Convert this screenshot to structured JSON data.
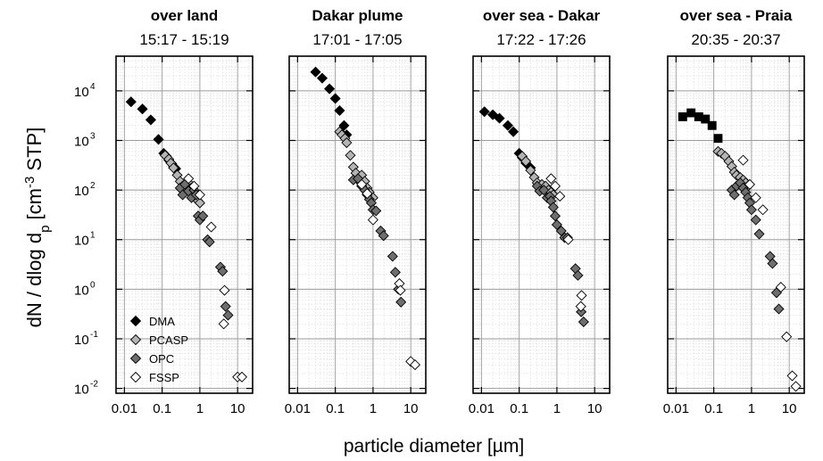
{
  "figure": {
    "ylabel": {
      "pre": "dN / dlog d",
      "sub": "p",
      "mid": "  [cm",
      "sup": "-3",
      "post": " STP]"
    },
    "xlabel": "particle diameter  [µm]",
    "legend": [
      {
        "name": "DMA",
        "marker": "diamond",
        "fill": "#000000",
        "stroke": "#000000"
      },
      {
        "name": "PCASP",
        "marker": "diamond",
        "fill": "#b4b4b4",
        "stroke": "#000000"
      },
      {
        "name": "OPC",
        "marker": "diamond",
        "fill": "#6e6e6e",
        "stroke": "#000000"
      },
      {
        "name": "FSSP",
        "marker": "diamond",
        "fill": "#ffffff",
        "stroke": "#000000"
      }
    ],
    "x_tick_labels": [
      "0.01",
      "0.1",
      "1",
      "10"
    ],
    "y_tick_labels": [
      {
        "base": "10",
        "exp": "4"
      },
      {
        "base": "10",
        "exp": "3"
      },
      {
        "base": "10",
        "exp": "2"
      },
      {
        "base": "10",
        "exp": "1"
      },
      {
        "base": "10",
        "exp": "0"
      },
      {
        "base": "10",
        "exp": "-1"
      },
      {
        "base": "10",
        "exp": "-2"
      }
    ]
  },
  "chart_data": [
    {
      "type": "scatter",
      "title": "over land",
      "subtitle": "15:17 - 15:19",
      "x_scale": "log",
      "y_scale": "log",
      "xlim": [
        0.006,
        25
      ],
      "ylim": [
        0.008,
        50000
      ],
      "grid": true,
      "legend_position": "bottom-left",
      "series": [
        {
          "name": "DMA",
          "points": [
            [
              0.015,
              6000
            ],
            [
              0.03,
              4300
            ],
            [
              0.05,
              2600
            ],
            [
              0.08,
              1050
            ],
            [
              0.11,
              550
            ],
            [
              0.13,
              480
            ],
            [
              0.15,
              400
            ],
            [
              0.18,
              340
            ],
            [
              0.2,
              300
            ],
            [
              0.23,
              270
            ]
          ]
        },
        {
          "name": "PCASP",
          "points": [
            [
              0.12,
              500
            ],
            [
              0.15,
              420
            ],
            [
              0.17,
              350
            ],
            [
              0.2,
              280
            ],
            [
              0.25,
              200
            ],
            [
              0.3,
              150
            ],
            [
              0.35,
              120
            ],
            [
              0.4,
              100
            ],
            [
              0.5,
              140
            ],
            [
              0.6,
              110
            ],
            [
              0.7,
              90
            ],
            [
              0.8,
              70
            ],
            [
              0.9,
              60
            ],
            [
              1.0,
              55
            ]
          ]
        },
        {
          "name": "OPC",
          "points": [
            [
              0.3,
              110
            ],
            [
              0.35,
              80
            ],
            [
              0.4,
              130
            ],
            [
              0.5,
              95
            ],
            [
              0.6,
              70
            ],
            [
              0.7,
              100
            ],
            [
              0.8,
              80
            ],
            [
              0.9,
              30
            ],
            [
              1.0,
              25
            ],
            [
              1.2,
              30
            ],
            [
              1.6,
              10
            ],
            [
              1.8,
              9
            ],
            [
              3.5,
              2.8
            ],
            [
              4.0,
              2.3
            ],
            [
              4.8,
              0.45
            ],
            [
              5.6,
              0.3
            ]
          ]
        },
        {
          "name": "FSSP",
          "points": [
            [
              0.5,
              170
            ],
            [
              0.7,
              120
            ],
            [
              1.0,
              80
            ],
            [
              2.0,
              18
            ],
            [
              4.5,
              0.95
            ],
            [
              4.3,
              0.2
            ],
            [
              10,
              0.017
            ],
            [
              13,
              0.017
            ]
          ]
        }
      ]
    },
    {
      "type": "scatter",
      "title": "Dakar plume",
      "subtitle": "17:01 - 17:05",
      "x_scale": "log",
      "y_scale": "log",
      "xlim": [
        0.006,
        25
      ],
      "ylim": [
        0.008,
        50000
      ],
      "grid": true,
      "series": [
        {
          "name": "DMA",
          "points": [
            [
              0.03,
              24000
            ],
            [
              0.045,
              18000
            ],
            [
              0.07,
              11000
            ],
            [
              0.1,
              7000
            ],
            [
              0.13,
              4000
            ],
            [
              0.17,
              2000
            ],
            [
              0.2,
              1300
            ]
          ]
        },
        {
          "name": "PCASP",
          "points": [
            [
              0.13,
              1500
            ],
            [
              0.15,
              1300
            ],
            [
              0.18,
              1100
            ],
            [
              0.2,
              900
            ],
            [
              0.25,
              500
            ],
            [
              0.3,
              290
            ],
            [
              0.35,
              220
            ],
            [
              0.4,
              160
            ],
            [
              0.5,
              200
            ],
            [
              0.6,
              150
            ],
            [
              0.7,
              110
            ],
            [
              0.8,
              90
            ],
            [
              1.0,
              70
            ]
          ]
        },
        {
          "name": "OPC",
          "points": [
            [
              0.3,
              160
            ],
            [
              0.4,
              170
            ],
            [
              0.5,
              120
            ],
            [
              0.6,
              100
            ],
            [
              0.7,
              80
            ],
            [
              0.8,
              65
            ],
            [
              0.9,
              55
            ],
            [
              1.0,
              40
            ],
            [
              1.2,
              38
            ],
            [
              1.6,
              15
            ],
            [
              1.9,
              12
            ],
            [
              3.3,
              4.6
            ],
            [
              3.9,
              2.2
            ],
            [
              4.7,
              1.0
            ],
            [
              5.5,
              0.55
            ]
          ]
        },
        {
          "name": "FSSP",
          "points": [
            [
              0.5,
              130
            ],
            [
              0.7,
              85
            ],
            [
              1.0,
              25
            ],
            [
              5.0,
              1.3
            ],
            [
              5.3,
              0.95
            ],
            [
              10,
              0.035
            ],
            [
              13,
              0.03
            ]
          ]
        }
      ]
    },
    {
      "type": "scatter",
      "title": "over sea - Dakar",
      "subtitle": "17:22 - 17:26",
      "x_scale": "log",
      "y_scale": "log",
      "xlim": [
        0.006,
        25
      ],
      "ylim": [
        0.008,
        50000
      ],
      "grid": true,
      "series": [
        {
          "name": "DMA",
          "points": [
            [
              0.012,
              3800
            ],
            [
              0.02,
              3300
            ],
            [
              0.03,
              2800
            ],
            [
              0.05,
              2000
            ],
            [
              0.07,
              1500
            ],
            [
              0.1,
              550
            ],
            [
              0.12,
              450
            ],
            [
              0.15,
              350
            ],
            [
              0.2,
              280
            ]
          ]
        },
        {
          "name": "PCASP",
          "points": [
            [
              0.12,
              480
            ],
            [
              0.15,
              380
            ],
            [
              0.2,
              250
            ],
            [
              0.25,
              180
            ],
            [
              0.3,
              140
            ],
            [
              0.35,
              110
            ],
            [
              0.4,
              130
            ],
            [
              0.5,
              120
            ],
            [
              0.6,
              100
            ],
            [
              0.7,
              90
            ],
            [
              0.8,
              80
            ]
          ]
        },
        {
          "name": "OPC",
          "points": [
            [
              0.3,
              120
            ],
            [
              0.35,
              95
            ],
            [
              0.45,
              100
            ],
            [
              0.55,
              70
            ],
            [
              0.65,
              75
            ],
            [
              0.7,
              60
            ],
            [
              0.8,
              45
            ],
            [
              0.9,
              30
            ],
            [
              1.0,
              20
            ],
            [
              1.3,
              15
            ],
            [
              1.6,
              11
            ],
            [
              1.9,
              11
            ],
            [
              3.1,
              2.6
            ],
            [
              3.6,
              1.9
            ],
            [
              4.4,
              0.35
            ],
            [
              5.1,
              0.22
            ]
          ]
        },
        {
          "name": "FSSP",
          "points": [
            [
              0.7,
              170
            ],
            [
              0.9,
              120
            ],
            [
              1.2,
              75
            ],
            [
              2.0,
              10
            ],
            [
              4.5,
              0.75
            ],
            [
              4.3,
              0.45
            ]
          ]
        }
      ]
    },
    {
      "type": "scatter",
      "title": "over sea - Praia",
      "subtitle": "20:35 - 20:37",
      "x_scale": "log",
      "y_scale": "log",
      "xlim": [
        0.006,
        25
      ],
      "ylim": [
        0.008,
        50000
      ],
      "grid": true,
      "series": [
        {
          "name": "DMA",
          "marker": "square",
          "points": [
            [
              0.015,
              3000
            ],
            [
              0.025,
              3600
            ],
            [
              0.04,
              3000
            ],
            [
              0.06,
              2700
            ],
            [
              0.09,
              2000
            ],
            [
              0.13,
              1100
            ]
          ]
        },
        {
          "name": "PCASP",
          "points": [
            [
              0.13,
              600
            ],
            [
              0.16,
              550
            ],
            [
              0.2,
              480
            ],
            [
              0.25,
              380
            ],
            [
              0.3,
              300
            ],
            [
              0.35,
              230
            ],
            [
              0.4,
              200
            ],
            [
              0.5,
              180
            ],
            [
              0.6,
              160
            ],
            [
              0.7,
              140
            ],
            [
              0.8,
              120
            ]
          ]
        },
        {
          "name": "OPC",
          "points": [
            [
              0.3,
              100
            ],
            [
              0.35,
              80
            ],
            [
              0.4,
              120
            ],
            [
              0.5,
              140
            ],
            [
              0.6,
              110
            ],
            [
              0.7,
              90
            ],
            [
              0.8,
              70
            ],
            [
              0.9,
              55
            ],
            [
              1.0,
              40
            ],
            [
              1.3,
              25
            ],
            [
              1.6,
              13
            ],
            [
              3.1,
              4.6
            ],
            [
              3.6,
              3.3
            ],
            [
              4.6,
              0.85
            ],
            [
              5.3,
              0.4
            ]
          ]
        },
        {
          "name": "FSSP",
          "points": [
            [
              0.6,
              400
            ],
            [
              0.9,
              130
            ],
            [
              1.3,
              70
            ],
            [
              2.0,
              40
            ],
            [
              6.0,
              1.1
            ],
            [
              8.5,
              0.11
            ],
            [
              12,
              0.018
            ],
            [
              15,
              0.011
            ]
          ]
        }
      ]
    }
  ]
}
